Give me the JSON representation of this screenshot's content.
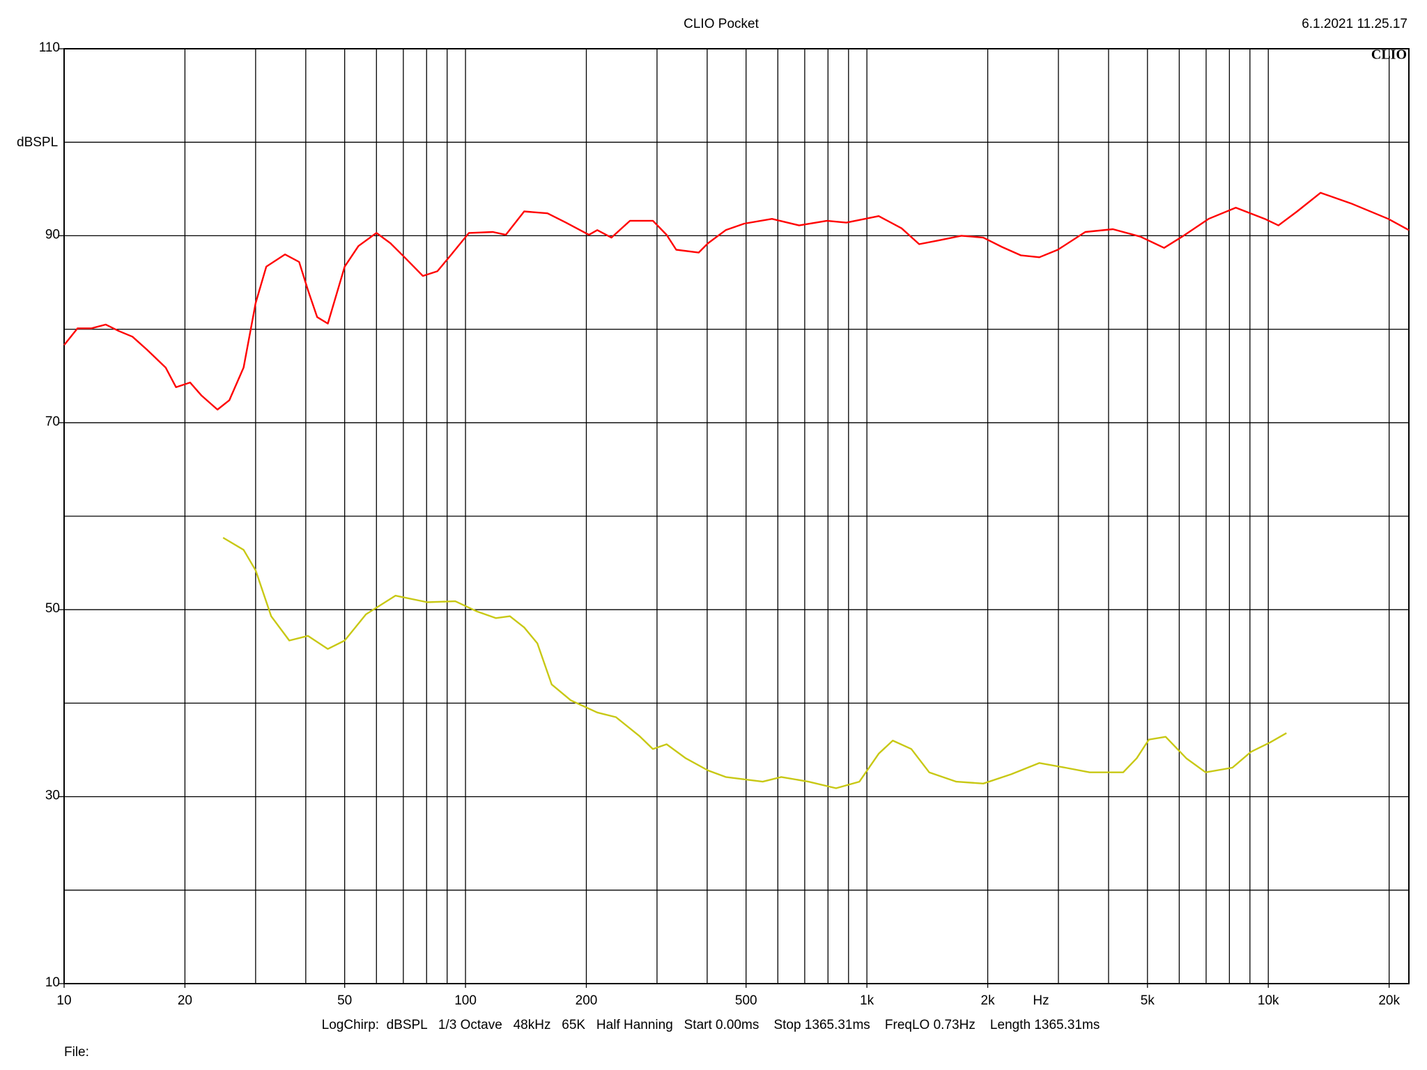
{
  "chart_data": {
    "type": "line",
    "title": "CLIO Pocket",
    "timestamp": "6.1.2021 11.25.17",
    "logo": "CLIO",
    "ylabel": "dBSPL",
    "xlabel": "Hz",
    "footer": "LogChirp:  dBSPL   1/3 Octave   48kHz   65K   Half Hanning   Start 0.00ms    Stop 1365.31ms    FreqLO 0.73Hz    Length 1365.31ms",
    "file_label": "File:",
    "xlog": true,
    "grid": true,
    "xlim": [
      10,
      22400
    ],
    "ylim": [
      10,
      110
    ],
    "xticks": [
      10,
      20,
      50,
      100,
      200,
      500,
      {
        "value": 1000,
        "label": "1k"
      },
      {
        "value": 2000,
        "label": "2k"
      },
      {
        "value": 5000,
        "label": "5k"
      },
      {
        "value": 10000,
        "label": "10k"
      },
      {
        "value": 20000,
        "label": "20k"
      }
    ],
    "xgrid": [
      20,
      30,
      40,
      50,
      60,
      70,
      80,
      90,
      100,
      200,
      300,
      400,
      500,
      600,
      700,
      800,
      900,
      1000,
      2000,
      3000,
      4000,
      5000,
      6000,
      7000,
      8000,
      9000,
      10000,
      20000
    ],
    "yticks": [
      10,
      30,
      50,
      70,
      90,
      110
    ],
    "ygrid": [
      20,
      30,
      40,
      50,
      60,
      70,
      80,
      90,
      100
    ],
    "series": [
      {
        "color": "#ff0000",
        "x": [
          10,
          10.8,
          11.7,
          12.7,
          13.7,
          14.8,
          16.1,
          17.9,
          19.0,
          20.6,
          22.0,
          24.1,
          25.8,
          28.0,
          30.0,
          31.9,
          35.5,
          38.5,
          40.5,
          42.7,
          45.4,
          50.0,
          54.1,
          60.0,
          65.0,
          70.5,
          78.3,
          85.1,
          91.8,
          102,
          117,
          126,
          140,
          160,
          178,
          203,
          213,
          231,
          257,
          293,
          317,
          335,
          381,
          402,
          445,
          495,
          580,
          678,
          795,
          889,
          1070,
          1220,
          1350,
          1510,
          1720,
          1950,
          2170,
          2420,
          2690,
          2990,
          3500,
          4100,
          4800,
          5500,
          6100,
          7100,
          8300,
          9800,
          10600,
          11800,
          13500,
          16200,
          19900,
          22400
        ],
        "values": [
          78.3,
          80.1,
          80.1,
          80.5,
          79.8,
          79.2,
          77.8,
          75.9,
          73.8,
          74.3,
          72.9,
          71.4,
          72.4,
          75.9,
          82.8,
          86.7,
          88.0,
          87.2,
          84.2,
          81.3,
          80.6,
          86.7,
          88.9,
          90.3,
          89.2,
          87.7,
          85.7,
          86.2,
          87.9,
          90.3,
          90.4,
          90.1,
          92.6,
          92.4,
          91.4,
          90.1,
          90.6,
          89.8,
          91.6,
          91.6,
          90.1,
          88.5,
          88.2,
          89.2,
          90.6,
          91.3,
          91.8,
          91.1,
          91.6,
          91.4,
          92.1,
          90.8,
          89.1,
          89.5,
          90.0,
          89.8,
          88.8,
          87.9,
          87.7,
          88.5,
          90.4,
          90.7,
          89.9,
          88.7,
          89.9,
          91.8,
          93.0,
          91.8,
          91.1,
          92.6,
          94.6,
          93.4,
          91.8,
          90.6
        ]
      },
      {
        "color": "#c8c814",
        "x": [
          24.9,
          28.0,
          30.0,
          32.8,
          36.4,
          40.5,
          45.4,
          50.0,
          56.5,
          66.9,
          80.3,
          94.3,
          107,
          119,
          129,
          140,
          151,
          164,
          183,
          213,
          237,
          271,
          293,
          317,
          354,
          402,
          445,
          550,
          612,
          715,
          838,
          958,
          1070,
          1160,
          1290,
          1430,
          1670,
          1950,
          2290,
          2690,
          3120,
          3590,
          4350,
          4700,
          5040,
          5550,
          6250,
          6980,
          8140,
          9060,
          10100,
          11100
        ],
        "values": [
          57.7,
          56.4,
          54.2,
          49.3,
          46.7,
          47.2,
          45.8,
          46.7,
          49.5,
          51.5,
          50.8,
          50.9,
          49.8,
          49.1,
          49.3,
          48.1,
          46.4,
          42.0,
          40.3,
          39.0,
          38.5,
          36.5,
          35.1,
          35.6,
          34.1,
          32.8,
          32.1,
          31.6,
          32.1,
          31.6,
          30.9,
          31.6,
          34.6,
          36.0,
          35.1,
          32.6,
          31.6,
          31.4,
          32.4,
          33.6,
          33.1,
          32.6,
          32.6,
          34.1,
          36.1,
          36.4,
          34.1,
          32.6,
          33.1,
          34.8,
          35.8,
          36.8
        ]
      }
    ]
  }
}
